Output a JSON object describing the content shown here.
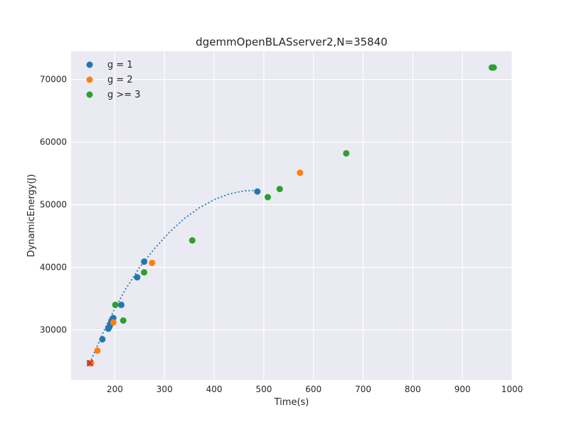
{
  "chart_data": {
    "type": "scatter",
    "title": "dgemmOpenBLASserver2,N=35840",
    "xlabel": "Time(s)",
    "ylabel": "DynamicEnergy(J)",
    "xlim": [
      112,
      1000
    ],
    "ylim": [
      22000,
      74500
    ],
    "xticks": [
      200,
      300,
      400,
      500,
      600,
      700,
      800,
      900,
      1000
    ],
    "yticks": [
      30000,
      40000,
      50000,
      60000,
      70000
    ],
    "grid": true,
    "legend_position": "top-left",
    "series": [
      {
        "name": "g = 1",
        "color": "#1f77b4",
        "points": [
          [
            150,
            24700
          ],
          [
            175,
            28500
          ],
          [
            187,
            30200
          ],
          [
            189,
            30500
          ],
          [
            191,
            30900
          ],
          [
            193,
            31400
          ],
          [
            195,
            31700
          ],
          [
            197,
            31900
          ],
          [
            213,
            34000
          ],
          [
            245,
            38400
          ],
          [
            259,
            40900
          ],
          [
            487,
            52100
          ]
        ]
      },
      {
        "name": "g = 2",
        "color": "#ff7f0e",
        "points": [
          [
            152,
            24700
          ],
          [
            165,
            26700
          ],
          [
            197,
            31200
          ],
          [
            275,
            40700
          ],
          [
            573,
            55100
          ]
        ]
      },
      {
        "name": "g >= 3",
        "color": "#2ca02c",
        "points": [
          [
            201,
            34000
          ],
          [
            217,
            31500
          ],
          [
            259,
            39200
          ],
          [
            356,
            44300
          ],
          [
            508,
            51200
          ],
          [
            532,
            52500
          ],
          [
            666,
            58200
          ],
          [
            959,
            71900
          ],
          [
            963,
            71900
          ]
        ]
      }
    ],
    "fit_curve": {
      "color": "#1f77b4",
      "style": "dotted",
      "points": [
        [
          150,
          24700
        ],
        [
          160,
          26600
        ],
        [
          180,
          30200
        ],
        [
          200,
          33400
        ],
        [
          220,
          36300
        ],
        [
          250,
          40000
        ],
        [
          280,
          43000
        ],
        [
          310,
          45600
        ],
        [
          340,
          47800
        ],
        [
          370,
          49500
        ],
        [
          400,
          50800
        ],
        [
          430,
          51700
        ],
        [
          460,
          52200
        ],
        [
          487,
          52300
        ]
      ]
    },
    "marker": {
      "name": "optimal-point",
      "color": "#d62728",
      "point": [
        150,
        24700
      ]
    }
  }
}
